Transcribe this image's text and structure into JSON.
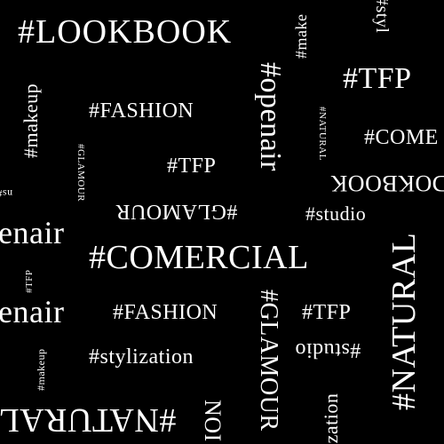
{
  "background_color": "#000000",
  "text_color": "#ffffff",
  "words": {
    "lookbook": "#LOOKBOOK",
    "tfp_top_right": "#TFP",
    "fashion_1": "#FASHION",
    "comercial_right": "#COME",
    "openair_vertical": "#openair",
    "tfp_mid": "#TFP",
    "studio_mid": "#studio",
    "glamour_flipped": "#GLAMOUR",
    "lookbook_flipped": "DOKBOOK",
    "openair_left_1": "enair",
    "comercial_main": "#COMERCIAL",
    "openair_left_2": "enair",
    "fashion_2": "#FASHION",
    "tfp_low": "#TFP",
    "stylization": "#stylization",
    "studio_flipped": "#studio",
    "natural_vertical_big": "#NATURAL",
    "natural_flipped_bottom": "#NATURAL",
    "glamour_vertical": "#GLAMOUR",
    "makeup_vertical_left": "#makeup",
    "makeup_vertical_small": "#makeup",
    "makeup_top": "#make",
    "stylization_top": "#styl",
    "stylization_bottom": "ization",
    "natural_small": "#NATURAL",
    "glamour_small": "#GLAMOUR",
    "tfp_small": "#TFP",
    "ns_small": "ns#",
    "comercial_bottom": "NOI"
  }
}
